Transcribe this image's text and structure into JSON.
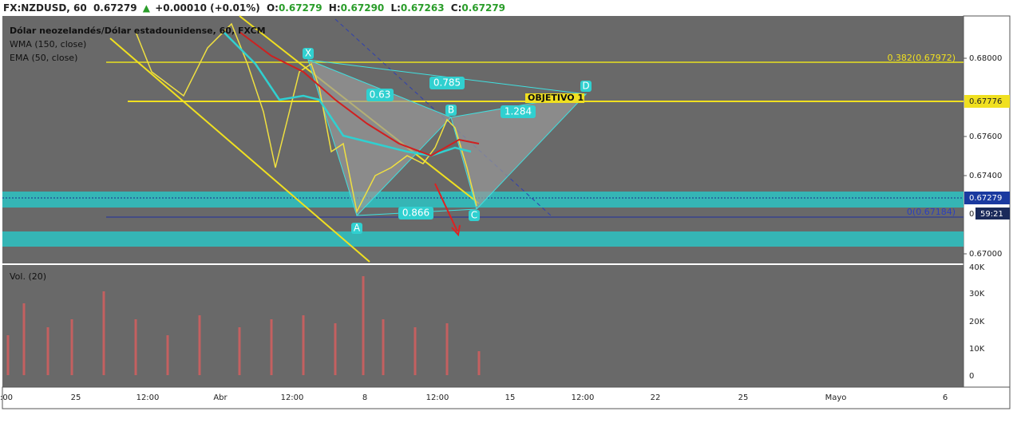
{
  "header": {
    "symbol": "FX:NZDUSD, 60",
    "last": "0.67279",
    "arrow": "▲",
    "change": "+0.00010 (+0.01%)",
    "o_label": "O:",
    "o": "0.67279",
    "h_label": "H:",
    "h": "0.67290",
    "l_label": "L:",
    "l": "0.67263",
    "c_label": "C:",
    "c": "0.67279"
  },
  "legend": {
    "instrument": "Dólar neozelandés/Dólar estadounidense, 60, FXCM",
    "wma": "WMA (150, close)",
    "ema": "EMA (50, close)",
    "volume": "Vol. (20)"
  },
  "price_axis": {
    "ticks": [
      {
        "value": 0.68,
        "label": "0.68000"
      },
      {
        "value": 0.676,
        "label": "0.67600"
      },
      {
        "value": 0.674,
        "label": "0.67400"
      },
      {
        "value": 0.67,
        "label": "0.67000"
      }
    ],
    "badges": {
      "level": "0.67776",
      "current": "0.67279",
      "timer": "59:21",
      "zero": "0"
    }
  },
  "volume_axis": {
    "ticks": [
      "40K",
      "30K",
      "20K",
      "10K",
      "0"
    ]
  },
  "time_axis": {
    "labels": [
      ":00",
      "25",
      "12:00",
      "Abr",
      "12:00",
      "8",
      "12:00",
      "15",
      "12:00",
      "22",
      "25",
      "Mayo",
      "6"
    ]
  },
  "pattern": {
    "points": [
      "X",
      "A",
      "B",
      "C",
      "D"
    ],
    "ratios": [
      "0.63",
      "0.785",
      "1.284",
      "0.866"
    ],
    "fib_top": "0.382(0.67972)",
    "fib_zero": "0(0.67184)",
    "target": "OBJETIVO 1"
  }
}
